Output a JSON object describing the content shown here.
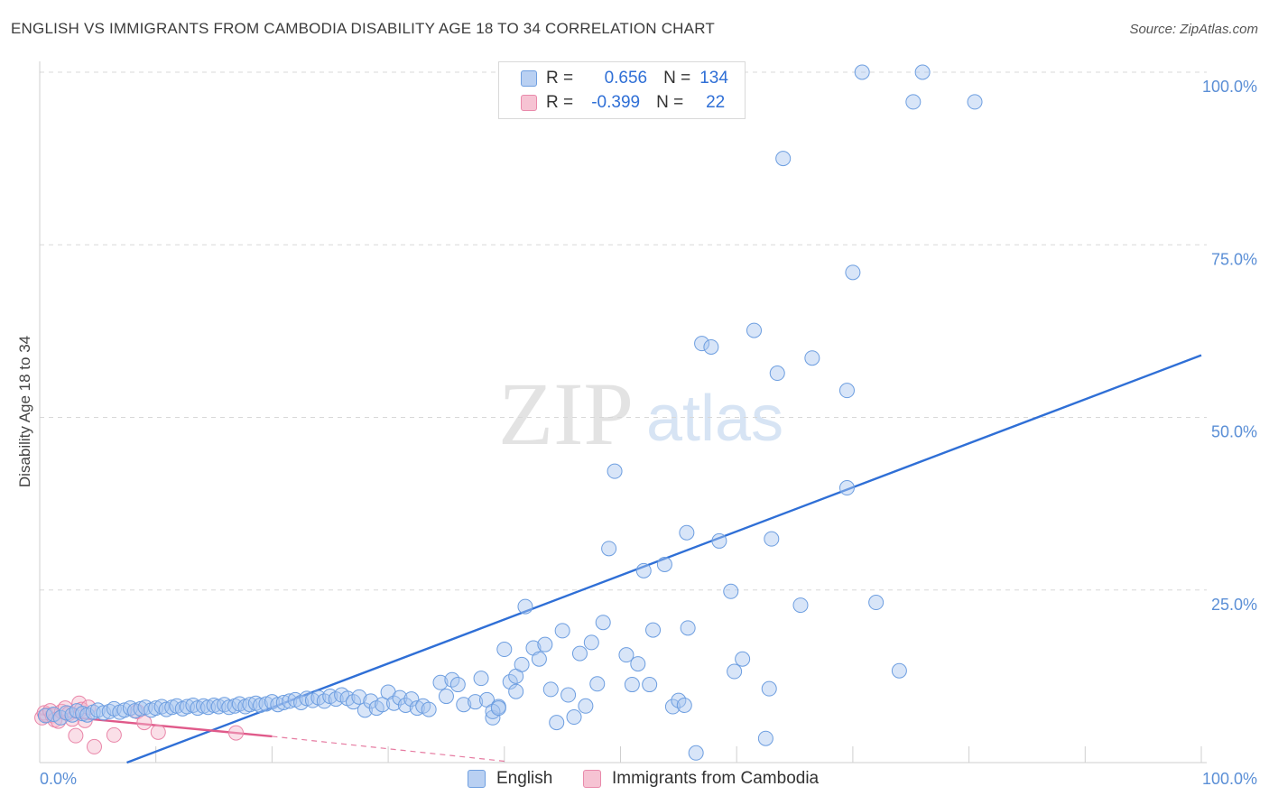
{
  "header": {
    "title": "ENGLISH VS IMMIGRANTS FROM CAMBODIA DISABILITY AGE 18 TO 34 CORRELATION CHART",
    "source": "Source: ZipAtlas.com"
  },
  "stats": {
    "rows": [
      {
        "r_label": "R =",
        "r_value": "0.656",
        "n_label": "N =",
        "n_value": "134"
      },
      {
        "r_label": "R =",
        "r_value": "-0.399",
        "n_label": "N =",
        "n_value": "22"
      }
    ]
  },
  "legend": {
    "items": [
      {
        "label": "English"
      },
      {
        "label": "Immigrants from Cambodia"
      }
    ]
  },
  "watermark": {
    "zip": "ZIP",
    "atlas": "atlas"
  },
  "colors": {
    "english_fill": "#a9c6ef",
    "english_stroke": "#6d9ee0",
    "english_line": "#2f6fd6",
    "cambodia_fill": "#f4b8cb",
    "cambodia_stroke": "#e985a8",
    "cambodia_line": "#e05a8a",
    "grid": "#d8d8d8",
    "tick_label": "#5b8fd6"
  },
  "chart_data": {
    "type": "scatter",
    "title": "ENGLISH VS IMMIGRANTS FROM CAMBODIA DISABILITY AGE 18 TO 34 CORRELATION CHART",
    "xlabel": "",
    "ylabel": "Disability Age 18 to 34",
    "xlim": [
      0,
      100
    ],
    "ylim": [
      0,
      100
    ],
    "x_tick_labels": [
      "0.0%",
      "100.0%"
    ],
    "y_ticks": [
      25,
      50,
      75,
      100
    ],
    "y_tick_labels": [
      "25.0%",
      "50.0%",
      "75.0%",
      "100.0%"
    ],
    "grid": "horizontal dashed",
    "legend_placement": "bottom-center",
    "series": [
      {
        "name": "English",
        "r": 0.656,
        "n": 134,
        "trend": {
          "x": [
            7.5,
            100
          ],
          "y": [
            0,
            59
          ]
        },
        "points": [
          [
            0.5,
            6.8
          ],
          [
            1.2,
            7.0
          ],
          [
            1.8,
            6.5
          ],
          [
            2.3,
            7.2
          ],
          [
            2.8,
            6.9
          ],
          [
            3.2,
            7.5
          ],
          [
            3.7,
            7.1
          ],
          [
            4.1,
            6.9
          ],
          [
            4.6,
            7.3
          ],
          [
            5.0,
            7.6
          ],
          [
            5.5,
            7.2
          ],
          [
            6.0,
            7.4
          ],
          [
            6.4,
            7.8
          ],
          [
            6.9,
            7.3
          ],
          [
            7.3,
            7.6
          ],
          [
            7.8,
            7.9
          ],
          [
            8.2,
            7.5
          ],
          [
            8.7,
            7.8
          ],
          [
            9.1,
            8.0
          ],
          [
            9.6,
            7.6
          ],
          [
            10.0,
            7.9
          ],
          [
            10.5,
            8.1
          ],
          [
            10.9,
            7.7
          ],
          [
            11.4,
            8.0
          ],
          [
            11.8,
            8.2
          ],
          [
            12.3,
            7.8
          ],
          [
            12.7,
            8.1
          ],
          [
            13.2,
            8.3
          ],
          [
            13.6,
            7.9
          ],
          [
            14.1,
            8.2
          ],
          [
            14.5,
            8.0
          ],
          [
            15.0,
            8.3
          ],
          [
            15.4,
            8.1
          ],
          [
            15.9,
            8.4
          ],
          [
            16.3,
            8.0
          ],
          [
            16.8,
            8.2
          ],
          [
            17.2,
            8.5
          ],
          [
            17.7,
            8.1
          ],
          [
            18.1,
            8.4
          ],
          [
            18.6,
            8.6
          ],
          [
            19.0,
            8.3
          ],
          [
            19.5,
            8.5
          ],
          [
            20.0,
            8.8
          ],
          [
            20.5,
            8.4
          ],
          [
            21.0,
            8.7
          ],
          [
            21.5,
            8.9
          ],
          [
            22.0,
            9.1
          ],
          [
            22.5,
            8.7
          ],
          [
            23.0,
            9.3
          ],
          [
            23.5,
            9.0
          ],
          [
            24.0,
            9.4
          ],
          [
            24.5,
            8.9
          ],
          [
            25.0,
            9.6
          ],
          [
            25.5,
            9.2
          ],
          [
            26.0,
            9.8
          ],
          [
            26.5,
            9.3
          ],
          [
            27.0,
            8.8
          ],
          [
            27.5,
            9.5
          ],
          [
            28.0,
            7.6
          ],
          [
            28.5,
            8.9
          ],
          [
            29.0,
            7.9
          ],
          [
            29.5,
            8.4
          ],
          [
            30.0,
            10.2
          ],
          [
            30.5,
            8.6
          ],
          [
            31.0,
            9.4
          ],
          [
            31.5,
            8.3
          ],
          [
            32.0,
            9.2
          ],
          [
            32.5,
            7.9
          ],
          [
            33.0,
            8.2
          ],
          [
            33.5,
            7.7
          ],
          [
            34.5,
            11.6
          ],
          [
            35.0,
            9.6
          ],
          [
            35.5,
            12.0
          ],
          [
            36.0,
            11.3
          ],
          [
            36.5,
            8.4
          ],
          [
            37.5,
            8.8
          ],
          [
            38.0,
            12.2
          ],
          [
            38.5,
            9.1
          ],
          [
            39.0,
            6.5
          ],
          [
            39.5,
            8.1
          ],
          [
            39.0,
            7.4
          ],
          [
            39.5,
            7.9
          ],
          [
            40.0,
            16.4
          ],
          [
            40.5,
            11.7
          ],
          [
            41.0,
            12.5
          ],
          [
            41.5,
            14.2
          ],
          [
            41.0,
            10.3
          ],
          [
            41.8,
            22.6
          ],
          [
            42.5,
            16.6
          ],
          [
            43.0,
            15.0
          ],
          [
            43.5,
            17.1
          ],
          [
            44.0,
            10.6
          ],
          [
            44.5,
            5.8
          ],
          [
            45.0,
            19.1
          ],
          [
            45.5,
            9.8
          ],
          [
            46.0,
            6.6
          ],
          [
            46.5,
            15.8
          ],
          [
            47.0,
            8.2
          ],
          [
            47.5,
            17.4
          ],
          [
            48.0,
            11.4
          ],
          [
            48.5,
            20.3
          ],
          [
            49.5,
            42.2
          ],
          [
            49.0,
            31.0
          ],
          [
            50.5,
            15.6
          ],
          [
            51.0,
            11.3
          ],
          [
            51.5,
            14.3
          ],
          [
            52.0,
            27.8
          ],
          [
            52.5,
            11.3
          ],
          [
            52.8,
            19.2
          ],
          [
            53.8,
            28.7
          ],
          [
            54.5,
            8.1
          ],
          [
            55.0,
            9.0
          ],
          [
            55.5,
            8.3
          ],
          [
            55.7,
            33.3
          ],
          [
            55.8,
            19.5
          ],
          [
            56.5,
            1.4
          ],
          [
            57.0,
            60.7
          ],
          [
            57.8,
            60.2
          ],
          [
            58.5,
            32.1
          ],
          [
            59.5,
            24.8
          ],
          [
            59.8,
            13.2
          ],
          [
            60.5,
            15.0
          ],
          [
            61.5,
            62.6
          ],
          [
            62.5,
            3.5
          ],
          [
            62.8,
            10.7
          ],
          [
            63.0,
            32.4
          ],
          [
            63.5,
            56.4
          ],
          [
            64.0,
            87.5
          ],
          [
            65.5,
            22.8
          ],
          [
            66.5,
            58.6
          ],
          [
            69.5,
            53.9
          ],
          [
            69.5,
            39.8
          ],
          [
            70.0,
            71.0
          ],
          [
            70.8,
            100.0
          ],
          [
            72.0,
            23.2
          ],
          [
            74.0,
            13.3
          ],
          [
            75.2,
            95.7
          ],
          [
            76.0,
            100.0
          ],
          [
            80.5,
            95.7
          ]
        ]
      },
      {
        "name": "Immigrants from Cambodia",
        "r": -0.399,
        "n": 22,
        "trend": {
          "x": [
            0,
            20
          ],
          "y": [
            7.0,
            3.8
          ]
        },
        "trend_dashed": {
          "x": [
            20,
            40
          ],
          "y": [
            3.8,
            0.2
          ]
        },
        "points": [
          [
            0.2,
            6.5
          ],
          [
            0.4,
            7.2
          ],
          [
            0.6,
            6.9
          ],
          [
            0.9,
            7.5
          ],
          [
            1.1,
            6.8
          ],
          [
            1.3,
            6.2
          ],
          [
            1.6,
            6.0
          ],
          [
            1.9,
            7.4
          ],
          [
            2.2,
            7.9
          ],
          [
            2.5,
            7.1
          ],
          [
            2.8,
            6.3
          ],
          [
            3.1,
            3.9
          ],
          [
            3.4,
            8.6
          ],
          [
            3.6,
            7.7
          ],
          [
            3.9,
            6.1
          ],
          [
            4.2,
            8.0
          ],
          [
            4.7,
            2.3
          ],
          [
            6.4,
            4.0
          ],
          [
            8.4,
            7.4
          ],
          [
            9.0,
            5.8
          ],
          [
            10.2,
            4.4
          ],
          [
            16.9,
            4.3
          ]
        ]
      }
    ]
  }
}
